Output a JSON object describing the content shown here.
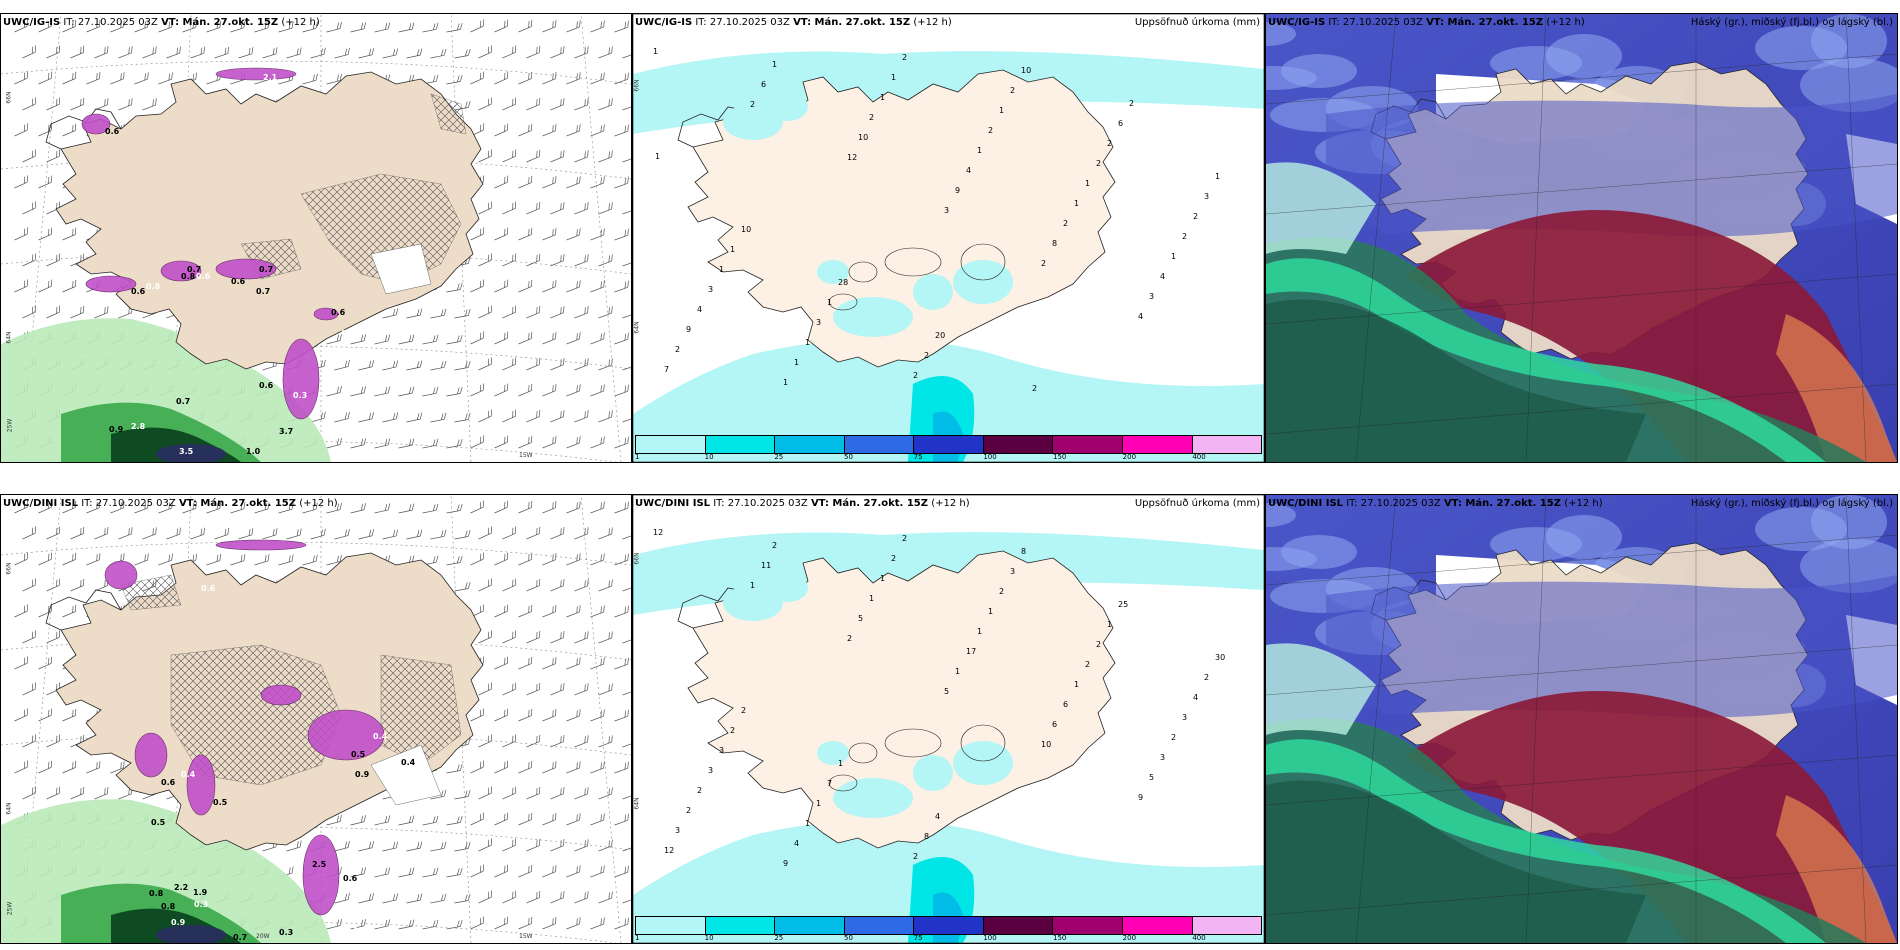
{
  "panels": [
    {
      "id": "p1",
      "left": {
        "model": "UWC/IG-IS",
        "init": "IT: 27.10.2025 03Z",
        "valid": "VT: Mán. 27.okt. 15Z",
        "lead": "(+12 h)"
      },
      "right": "",
      "type": "wind"
    },
    {
      "id": "p2",
      "left": {
        "model": "UWC/IG-IS",
        "init": "IT: 27.10.2025 03Z",
        "valid": "VT: Mán. 27.okt. 15Z",
        "lead": "(+12 h)"
      },
      "right": "Uppsöfnuð úrkoma (mm)",
      "type": "precip"
    },
    {
      "id": "p3",
      "left": {
        "model": "UWC/IG-IS",
        "init": "IT: 27.10.2025 03Z",
        "valid": "VT: Mán. 27.okt. 15Z",
        "lead": "(+12 h)"
      },
      "right": "Háský (gr.), miðský (fj.bl.) og lágský (bl.)",
      "type": "cloud"
    },
    {
      "id": "p4",
      "left": {
        "model": "UWC/DINI ISL",
        "init": "IT: 27.10.2025 03Z",
        "valid": "VT: Mán. 27.okt. 15Z",
        "lead": "(+12 h)"
      },
      "right": "",
      "type": "wind"
    },
    {
      "id": "p5",
      "left": {
        "model": "UWC/DINI ISL",
        "init": "IT: 27.10.2025 03Z",
        "valid": "VT: Mán. 27.okt. 15Z",
        "lead": "(+12 h)"
      },
      "right": "Uppsöfnuð úrkoma (mm)",
      "type": "precip"
    },
    {
      "id": "p6",
      "left": {
        "model": "UWC/DINI ISL",
        "init": "IT: 27.10.2025 03Z",
        "valid": "VT: Mán. 27.okt. 15Z",
        "lead": "(+12 h)"
      },
      "right": "Háský (gr.), miðský (fj.bl.) og lágský (bl.)",
      "type": "cloud"
    }
  ],
  "colorbar": {
    "ticks": [
      "1",
      "10",
      "25",
      "50",
      "75",
      "100",
      "150",
      "200",
      "400"
    ],
    "colors": [
      "#b4f5f5",
      "#00e6e6",
      "#00bce6",
      "#2f6ae6",
      "#2233c8",
      "#5a0040",
      "#a0006e",
      "#ff00b4",
      "#f2b4f2"
    ]
  },
  "axis_labels": {
    "lat66": "66N",
    "lat64": "64N",
    "lon25": "25W",
    "lon20": "20W",
    "lon15": "15W"
  },
  "wind_labels_top": [
    "2.1",
    "0.6",
    "0.7",
    "0.6",
    "0.7",
    "0.6",
    "0.6",
    "0.8",
    "0.6",
    "0.8",
    "0.7",
    "0.6",
    "0.3",
    "3.7",
    "0.6",
    "2.8",
    "0.9",
    "0.7",
    "3.5",
    "1.0"
  ],
  "wind_labels_bottom": [
    "0.6",
    "0.5",
    "0.4",
    "0.4",
    "0.5",
    "0.9",
    "0.5",
    "0.6",
    "0.5",
    "0.4",
    "2.5",
    "0.6",
    "0.3",
    "0.8",
    "0.8",
    "0.9",
    "0.7",
    "0.3",
    "1.7",
    "2.2",
    "1.9"
  ],
  "precip_labels_top": [
    "1",
    "2",
    "12",
    "3",
    "2",
    "4",
    "7",
    "6",
    "10",
    "9",
    "8",
    "3",
    "2",
    "1",
    "2",
    "4",
    "2",
    "4",
    "9",
    "1",
    "1",
    "1",
    "1",
    "1",
    "4",
    "1",
    "1",
    "2",
    "1",
    "2",
    "3",
    "1",
    "2",
    "1",
    "2",
    "2",
    "1",
    "3",
    "2",
    "2",
    "2",
    "3",
    "1",
    "1",
    "2",
    "10",
    "6",
    "1",
    "10",
    "28",
    "20",
    "2",
    "2",
    "1"
  ],
  "precip_labels_bottom": [
    "12",
    "1",
    "2",
    "5",
    "10",
    "9",
    "12",
    "11",
    "5",
    "1",
    "6",
    "5",
    "3",
    "2",
    "1",
    "17",
    "6",
    "3",
    "2",
    "9",
    "1",
    "1",
    "1",
    "2",
    "2",
    "4",
    "2",
    "1",
    "2",
    "3",
    "3",
    "1",
    "2",
    "2",
    "2",
    "4",
    "3",
    "1",
    "2",
    "3",
    "1",
    "2",
    "2",
    "7",
    "8",
    "8",
    "25",
    "30",
    "2",
    "1",
    "4"
  ]
}
